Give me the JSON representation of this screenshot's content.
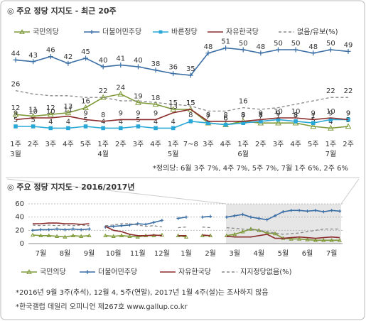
{
  "chart_data": [
    {
      "type": "line",
      "title": "◎  주요 정당 지지도 - 최근 20주",
      "categories": [
        "1주",
        "2주",
        "3주",
        "4주",
        "5주",
        "1주",
        "2주",
        "3주",
        "4주",
        "1주",
        "7~8",
        "3주",
        "4주",
        "1주",
        "2주",
        "3주",
        "4주",
        "5주",
        "1주",
        "2주"
      ],
      "months": [
        "3월",
        null,
        null,
        null,
        null,
        "4월",
        null,
        null,
        null,
        "5월",
        null,
        null,
        null,
        "6월",
        null,
        null,
        null,
        null,
        "7월",
        null
      ],
      "ylim": [
        0,
        60
      ],
      "series": [
        {
          "name": "국민의당",
          "color": "#7f9a3a",
          "marker": "triangle",
          "values": [
            12,
            11,
            12,
            13,
            16,
            22,
            24,
            19,
            18,
            15,
            15,
            7,
            6,
            8,
            7,
            7,
            7,
            5,
            4,
            5
          ]
        },
        {
          "name": "더불어민주당",
          "color": "#3a6ea5",
          "marker": "plus",
          "values": [
            44,
            43,
            46,
            42,
            45,
            40,
            41,
            40,
            38,
            36,
            35,
            48,
            51,
            50,
            48,
            50,
            50,
            48,
            50,
            49
          ]
        },
        {
          "name": "바른정당",
          "color": "#29a8d8",
          "marker": "square",
          "values": [
            5,
            5,
            4,
            4,
            5,
            4,
            4,
            5,
            4,
            4,
            8,
            7,
            6,
            7,
            8,
            9,
            8,
            7,
            9,
            9
          ]
        },
        {
          "name": "자유한국당",
          "color": "#8b2b2b",
          "marker": "none",
          "values": [
            9,
            10,
            10,
            11,
            9,
            8,
            9,
            9,
            9,
            13,
            15,
            8,
            8,
            8,
            9,
            10,
            10,
            9,
            10,
            9
          ]
        },
        {
          "name": "없음/유보(%)",
          "color": "#888888",
          "marker": "none",
          "dash": true,
          "values": [
            26,
            24,
            23,
            23,
            22,
            22,
            20,
            20,
            19,
            18,
            17,
            14,
            14,
            16,
            15,
            16,
            18,
            20,
            22,
            22
          ],
          "value_labels": [
            "26",
            null,
            null,
            null,
            null,
            null,
            null,
            null,
            null,
            null,
            null,
            null,
            null,
            "16",
            null,
            null,
            null,
            null,
            "22",
            "22"
          ]
        }
      ],
      "footnote": "*정의당: 6월 3주 7%, 4주 7%, 5주 7%, 7월 1주 6%, 2주 6%"
    },
    {
      "type": "line",
      "title": "◎  주요 정당 지지도 - 2016/2017년",
      "categories": [
        null,
        "7월",
        null,
        null,
        "8월",
        null,
        null,
        "9월",
        null,
        null,
        "10월",
        null,
        null,
        "11월",
        null,
        null,
        "12월",
        null,
        null,
        "1월",
        null,
        null,
        "2월",
        null,
        null,
        "3월",
        null,
        null,
        "4월",
        null,
        null,
        "5월",
        null,
        null,
        "6월",
        null,
        null,
        "7월",
        null
      ],
      "ylim": [
        0,
        60
      ],
      "yticks": [
        0,
        20,
        40,
        60
      ],
      "grid": true,
      "series": [
        {
          "name": "국민의당",
          "color": "#7f9a3a",
          "marker": "triangle",
          "values": [
            13,
            12,
            12,
            11,
            10,
            12,
            11,
            12,
            null,
            12,
            11,
            12,
            11,
            10,
            12,
            12,
            13,
            null,
            12,
            10,
            null,
            12,
            12,
            null,
            12,
            14,
            18,
            22,
            20,
            16,
            15,
            8,
            7,
            7,
            6,
            5,
            5,
            5,
            5
          ]
        },
        {
          "name": "더불어민주당",
          "color": "#3a6ea5",
          "marker": "plus",
          "values": [
            20,
            21,
            21,
            22,
            21,
            22,
            21,
            22,
            null,
            25,
            26,
            27,
            28,
            30,
            29,
            32,
            35,
            null,
            38,
            40,
            null,
            40,
            41,
            null,
            40,
            42,
            44,
            40,
            38,
            36,
            42,
            48,
            50,
            50,
            49,
            50,
            48,
            50,
            49
          ]
        },
        {
          "name": "자유한국당",
          "color": "#8b2b2b",
          "marker": "none",
          "values": [
            30,
            30,
            31,
            31,
            30,
            30,
            29,
            30,
            null,
            26,
            20,
            18,
            14,
            12,
            12,
            13,
            12,
            null,
            12,
            12,
            null,
            13,
            12,
            null,
            11,
            10,
            10,
            10,
            12,
            14,
            8,
            8,
            9,
            10,
            9,
            8,
            9,
            10,
            9
          ]
        },
        {
          "name": "지지정당없음(%)",
          "color": "#888888",
          "marker": "none",
          "dash": true,
          "values": [
            28,
            27,
            28,
            27,
            28,
            27,
            28,
            27,
            null,
            27,
            28,
            30,
            30,
            28,
            26,
            27,
            25,
            null,
            24,
            25,
            null,
            25,
            24,
            null,
            24,
            23,
            22,
            21,
            20,
            18,
            16,
            14,
            15,
            16,
            18,
            20,
            22,
            22,
            22
          ]
        }
      ],
      "footnotes": [
        "*2016년 9월 3주(추석), 12월 4, 5주(연말), 2017년 1월 4주(설)는 조사하지 않음",
        "*한국갤럽 데일리 오피니언 제267호 www.gallup.co.kr"
      ]
    }
  ]
}
